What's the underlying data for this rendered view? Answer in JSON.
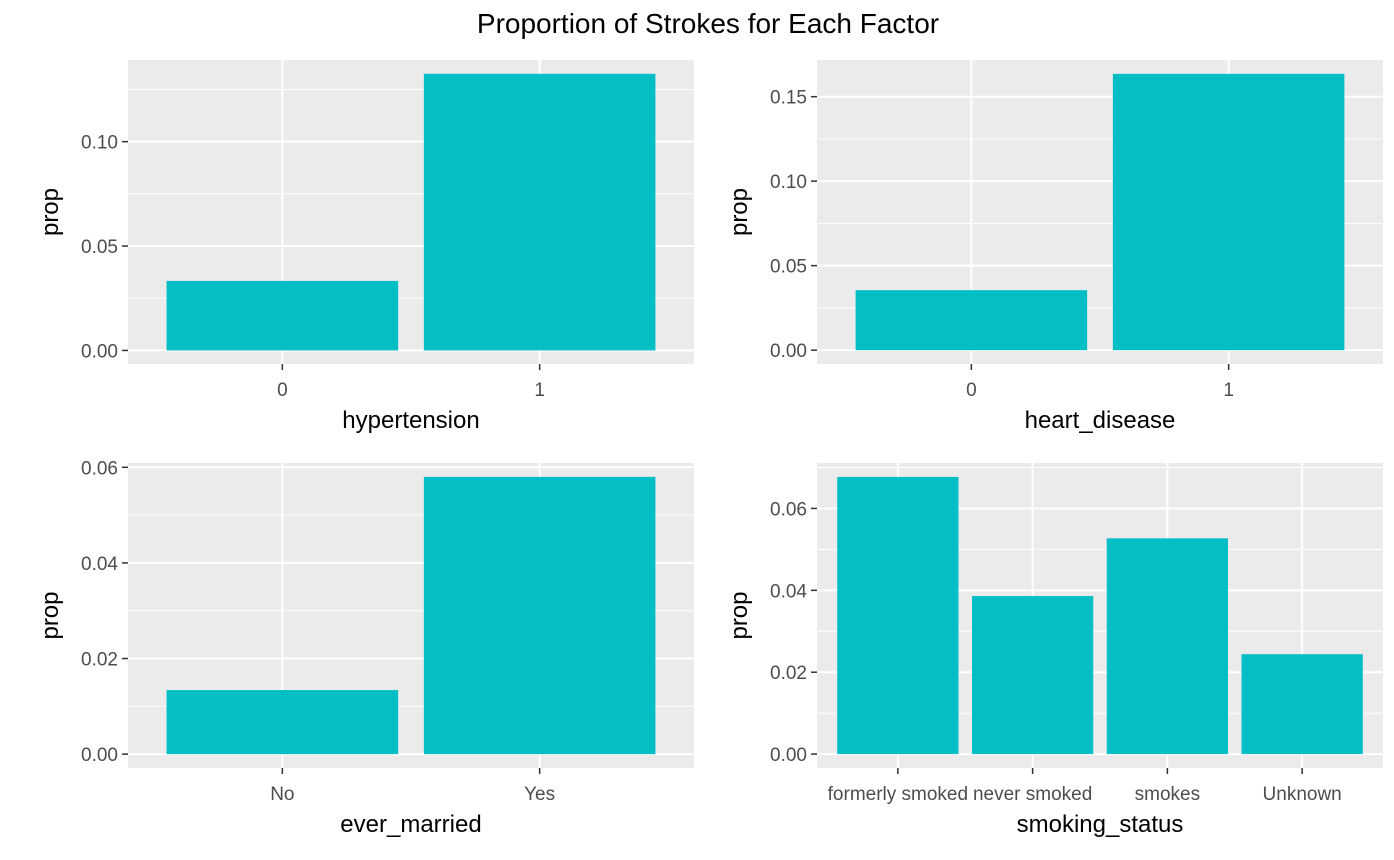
{
  "title": "Proportion of Strokes for Each Factor",
  "colors": {
    "bar": "#04BEC6",
    "panel_bg": "#EBEBEB",
    "grid_major": "#FFFFFF",
    "tick_text": "#4D4D4D",
    "tick_mark": "#333333"
  },
  "chart_data": [
    {
      "type": "bar",
      "categories": [
        "0",
        "1"
      ],
      "values": [
        0.0333,
        0.1325
      ],
      "xlabel": "hypertension",
      "ylabel": "prop",
      "ylim": [
        -0.0065,
        0.1391
      ],
      "yticks": [
        0.0,
        0.05,
        0.1
      ],
      "ytick_labels": [
        "0.00",
        "0.05",
        "0.10"
      ],
      "grid": true
    },
    {
      "type": "bar",
      "categories": [
        "0",
        "1"
      ],
      "values": [
        0.0355,
        0.1635
      ],
      "xlabel": "heart_disease",
      "ylabel": "prop",
      "ylim": [
        -0.0082,
        0.1717
      ],
      "yticks": [
        0.0,
        0.05,
        0.1,
        0.15
      ],
      "ytick_labels": [
        "0.00",
        "0.05",
        "0.10",
        "0.15"
      ],
      "grid": true
    },
    {
      "type": "bar",
      "categories": [
        "No",
        "Yes"
      ],
      "values": [
        0.0134,
        0.058
      ],
      "xlabel": "ever_married",
      "ylabel": "prop",
      "ylim": [
        -0.0029,
        0.0609
      ],
      "yticks": [
        0.0,
        0.02,
        0.04,
        0.06
      ],
      "ytick_labels": [
        "0.00",
        "0.02",
        "0.04",
        "0.06"
      ],
      "grid": true
    },
    {
      "type": "bar",
      "categories": [
        "formerly smoked",
        "never smoked",
        "smokes",
        "Unknown"
      ],
      "values": [
        0.0677,
        0.0386,
        0.0527,
        0.0244
      ],
      "xlabel": "smoking_status",
      "ylabel": "prop",
      "ylim": [
        -0.0034,
        0.0711
      ],
      "yticks": [
        0.0,
        0.02,
        0.04,
        0.06
      ],
      "ytick_labels": [
        "0.00",
        "0.02",
        "0.04",
        "0.06"
      ],
      "grid": true
    }
  ]
}
